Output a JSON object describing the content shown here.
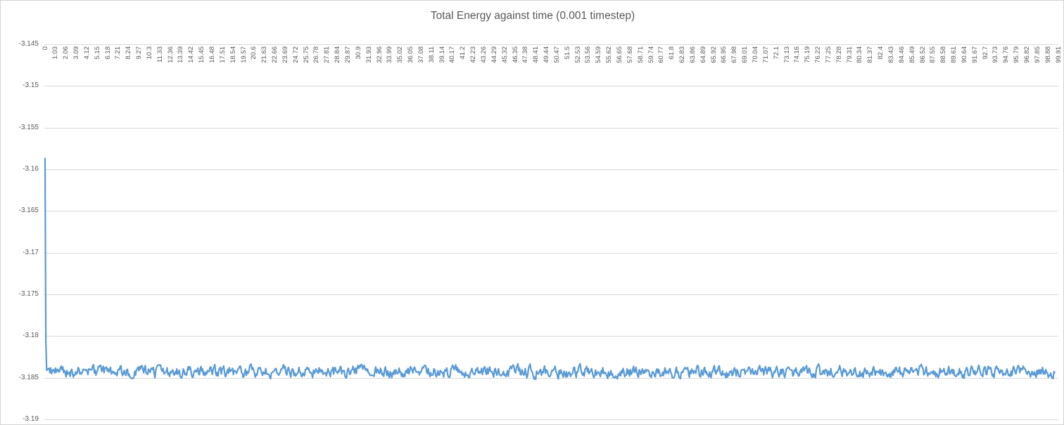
{
  "chart_data": {
    "type": "line",
    "title": "Total Energy against time (0.001 timestep)",
    "xlabel": "",
    "ylabel": "",
    "legend": "none",
    "grid": "horizontal",
    "ylim": [
      -3.19,
      -3.145
    ],
    "y_tick_step": 0.005,
    "y_tick_labels": [
      "-3.145",
      "-3.15",
      "-3.155",
      "-3.16",
      "-3.165",
      "-3.17",
      "-3.175",
      "-3.18",
      "-3.185",
      "-3.19"
    ],
    "x_tick_step": 1.03,
    "x_tick_labels": [
      "0",
      "1.03",
      "2.06",
      "3.09",
      "4.12",
      "5.15",
      "6.18",
      "7.21",
      "8.24",
      "9.27",
      "10.3",
      "11.33",
      "12.36",
      "13.39",
      "14.42",
      "15.45",
      "16.48",
      "17.51",
      "18.54",
      "19.57",
      "20.6",
      "21.63",
      "22.66",
      "23.69",
      "24.72",
      "25.75",
      "26.78",
      "27.81",
      "28.84",
      "29.87",
      "30.9",
      "31.93",
      "32.96",
      "33.99",
      "35.02",
      "36.05",
      "37.08",
      "38.11",
      "39.14",
      "40.17",
      "41.2",
      "42.23",
      "43.26",
      "44.29",
      "45.32",
      "46.35",
      "47.38",
      "48.41",
      "49.44",
      "50.47",
      "51.5",
      "52.53",
      "53.56",
      "54.59",
      "55.62",
      "56.65",
      "57.68",
      "58.71",
      "59.74",
      "60.77",
      "61.8",
      "62.83",
      "63.86",
      "64.89",
      "65.92",
      "66.95",
      "67.98",
      "69.01",
      "70.04",
      "71.07",
      "72.1",
      "73.13",
      "74.16",
      "75.19",
      "76.22",
      "77.25",
      "78.28",
      "79.31",
      "80.34",
      "81.37",
      "82.4",
      "83.43",
      "84.46",
      "85.49",
      "86.52",
      "87.55",
      "88.58",
      "89.61",
      "90.64",
      "91.67",
      "92.7",
      "93.73",
      "94.76",
      "95.79",
      "96.82",
      "97.85",
      "98.88",
      "99.91"
    ],
    "series": [
      {
        "name": "Total Energy",
        "color": "#5B9BD5",
        "stroke_width": 2.2,
        "description": "Starts at about -3.1587 at t=0, drops almost vertically to about -3.184 within t of roughly 0.2, then fluctuates as high-frequency noise around -3.1843 (roughly between -3.1825 and -3.1857) until t is about 99.9.",
        "start_value": -3.1587,
        "equilibrium_mean": -3.1843,
        "noise_band": [
          -3.1857,
          -3.1825
        ],
        "approx_points": [
          [
            0,
            -3.1587
          ],
          [
            0.05,
            -3.172
          ],
          [
            0.2,
            -3.1838
          ],
          [
            5,
            -3.1843
          ],
          [
            10,
            -3.1844
          ],
          [
            20,
            -3.184
          ],
          [
            20.6,
            -3.1828
          ],
          [
            30,
            -3.1844
          ],
          [
            40,
            -3.1842
          ],
          [
            50,
            -3.1845
          ],
          [
            51.5,
            -3.1856
          ],
          [
            60,
            -3.1842
          ],
          [
            70,
            -3.1843
          ],
          [
            80,
            -3.1841
          ],
          [
            90,
            -3.1844
          ],
          [
            99.5,
            -3.1842
          ]
        ],
        "t_start": 0,
        "t_end": 99.55,
        "decay_tau": 0.04,
        "noise_amplitude": 0.0012,
        "noise_smoothing": 0.5,
        "render_points": 1250,
        "seed": 9
      }
    ],
    "colors": {
      "background": "#FFFFFF",
      "border": "#D3D3D3",
      "gridline": "#D9D9D9",
      "axis_text": "#595959",
      "title_text": "#595959",
      "accent_line": "#5B9BD5"
    }
  }
}
